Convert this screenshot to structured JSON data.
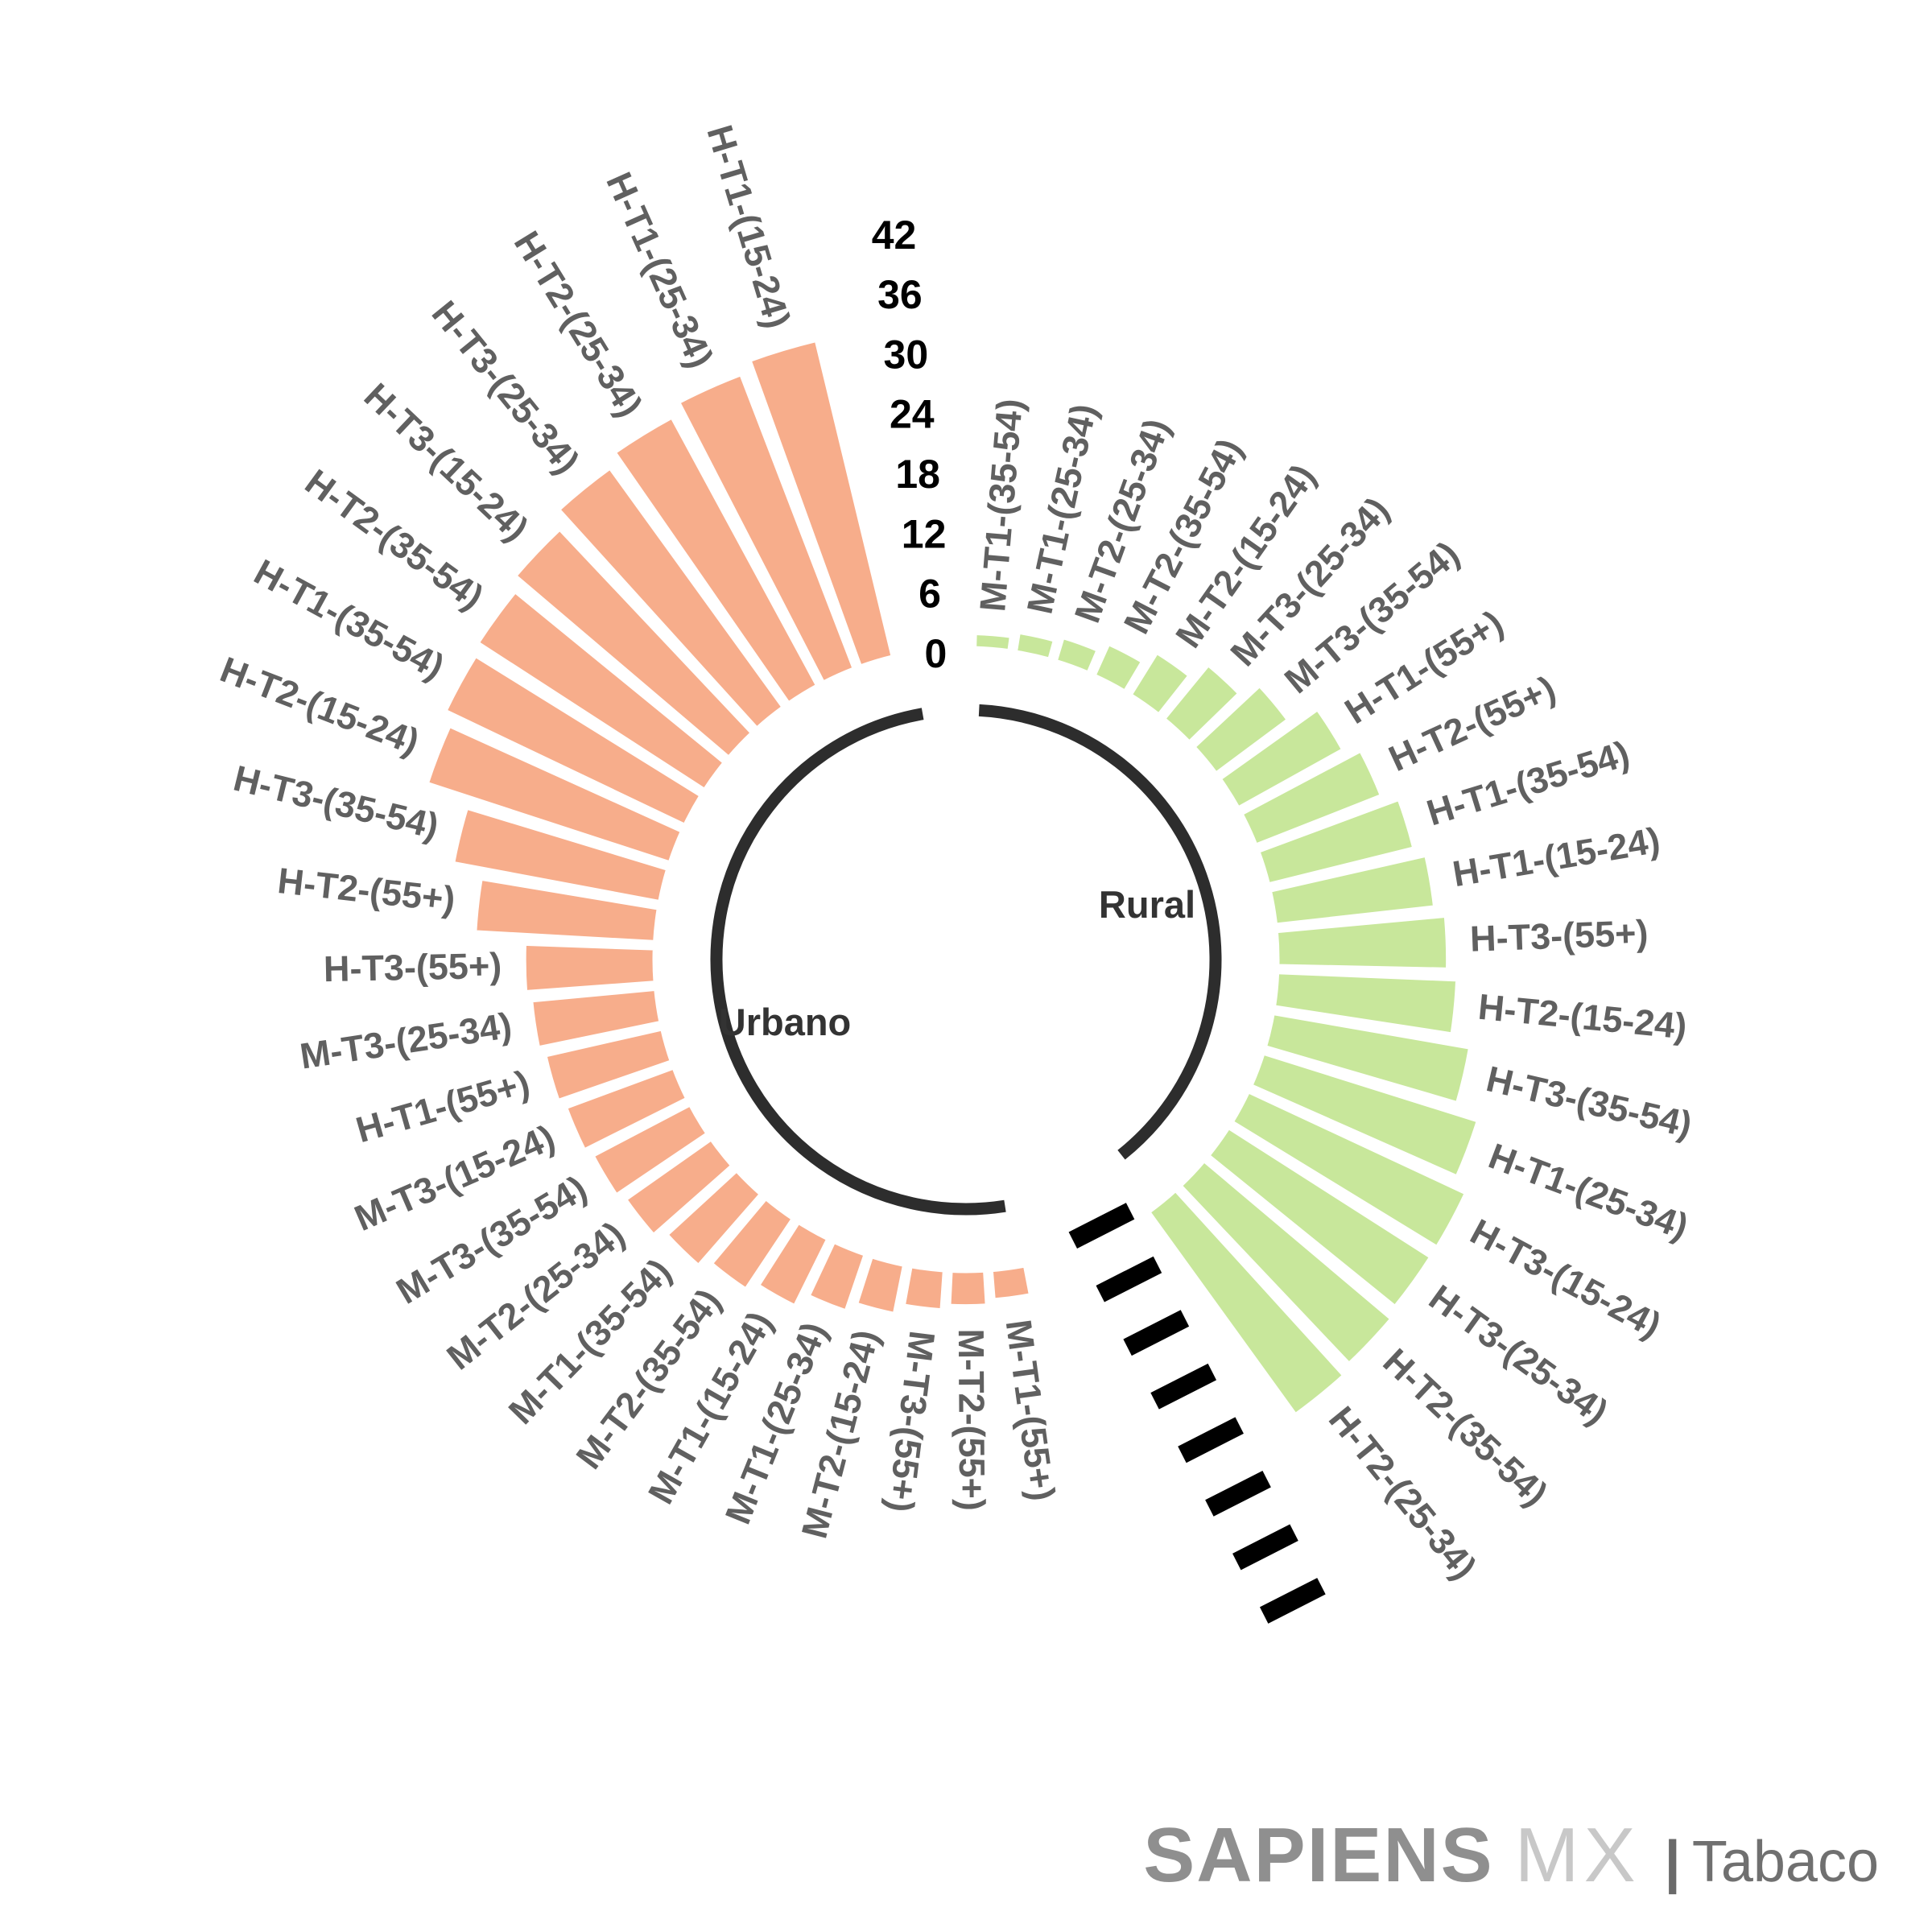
{
  "chart_data": {
    "type": "bar",
    "subtype": "circular-polar-bars",
    "title": "",
    "grid": false,
    "axis": {
      "min": 0,
      "max": 42,
      "ticks": [
        0,
        6,
        12,
        18,
        24,
        30,
        36,
        42
      ]
    },
    "sectors": [
      {
        "name": "Urbano",
        "bar_color": "#F7AD8B",
        "order": "descending counterclockwise from top",
        "categories": [
          "H-T1-(15-24)",
          "H-T1-(25-34)",
          "H-T2-(25-34)",
          "H-T3-(25-34)",
          "H-T3-(15-24)",
          "H-T2-(35-54)",
          "H-T1-(35-54)",
          "H-T2-(15-24)",
          "H-T3-(35-54)",
          "H-T2-(55+)",
          "H-T3-(55+)",
          "M-T3-(25-34)",
          "H-T1-(55+)",
          "M-T3-(15-24)",
          "M-T3-(35-54)",
          "M-T2-(25-34)",
          "M-T1-(35-54)",
          "M-T2-(35-54)",
          "M-T1-(15-24)",
          "M-T1-(25-34)",
          "M-T2-(15-24)",
          "M-T3-(55+)",
          "M-T2-(55+)",
          "M-T1-(55+)"
        ],
        "values": [
          32.5,
          31.5,
          30.5,
          29.5,
          28,
          27,
          26.5,
          25.5,
          21,
          18,
          13,
          12.5,
          12,
          11.5,
          11,
          10.5,
          9.5,
          8.5,
          7.5,
          6,
          5,
          4,
          3.5,
          3
        ]
      },
      {
        "name": "Rural",
        "bar_color": "#C8E79B",
        "order": "ascending clockwise from top",
        "categories": [
          "M-T1-(35-54)",
          "M-T1-(25-34)",
          "M-T2-(25-34)",
          "M-T2-(35-54)",
          "M-T2-(15-24)",
          "M-T3-(25-34)",
          "M-T3-(35-54)",
          "H-T1-(55+)",
          "H-T2-(55+)",
          "H-T1-(35-54)",
          "H-T1-(15-24)",
          "H-T3-(55+)",
          "H-T2-(15-24)",
          "H-T3-(35-54)",
          "H-T1-(25-34)",
          "H-T3-(15-24)",
          "H-T3-(25-34)",
          "H-T2-(35-54)",
          "H-T2-(25-34)"
        ],
        "values": [
          1.5,
          2,
          2.5,
          3.5,
          5,
          7,
          9,
          12,
          13.5,
          15,
          16,
          17,
          18,
          20,
          22.5,
          24,
          24,
          24.5,
          25
        ]
      }
    ],
    "separator_axis_dash_count": 8
  },
  "branding": {
    "brand": "SAPIENS",
    "region": "MX",
    "separator": "|",
    "product": "Tabaco"
  },
  "colors": {
    "urbano_bar": "#F7AD8B",
    "rural_bar": "#C8E79B",
    "category_label": "#606060",
    "axis_label": "#000000",
    "inner_ring": "#2D2D2D",
    "sector_label": "#333333",
    "dash": "#000000",
    "background": "#FFFFFF",
    "brand_gray": "#8F8F8F",
    "brand_light_gray": "#C8C8C8",
    "brand_dark_gray": "#6A6A6A"
  }
}
